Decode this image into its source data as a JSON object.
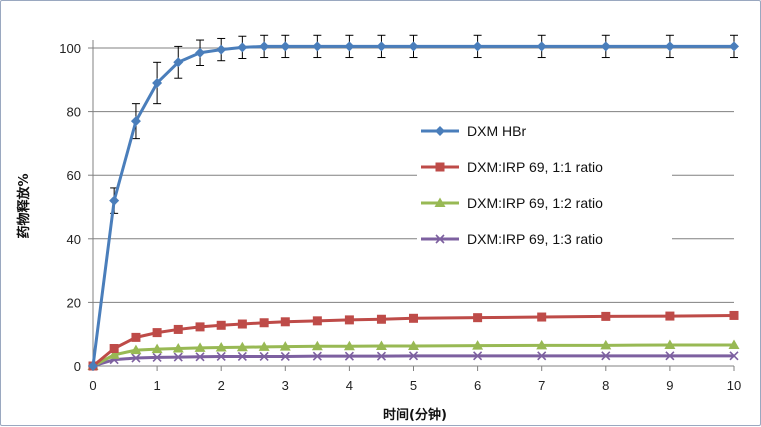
{
  "chart_data": {
    "type": "line",
    "title": "",
    "xlabel": "时间(分钟)",
    "ylabel": "药物释放%",
    "xlim": [
      0,
      10
    ],
    "ylim": [
      0,
      100
    ],
    "x_ticks": [
      0,
      1,
      2,
      3,
      4,
      5,
      6,
      7,
      8,
      9,
      10
    ],
    "y_ticks": [
      0,
      20,
      40,
      60,
      80,
      100
    ],
    "grid": "horizontal",
    "legend_position": "right",
    "series": [
      {
        "name": "DXM HBr",
        "color": "#4a7ebb",
        "marker": "diamond",
        "x": [
          0,
          0.33,
          0.67,
          1,
          1.33,
          1.67,
          2,
          2.33,
          2.67,
          3,
          3.5,
          4,
          4.5,
          5,
          6,
          7,
          8,
          9,
          10
        ],
        "y": [
          0,
          52,
          77,
          89,
          95.5,
          98.5,
          99.5,
          100.2,
          100.5,
          100.5,
          100.5,
          100.5,
          100.5,
          100.5,
          100.5,
          100.5,
          100.5,
          100.5,
          100.5
        ],
        "error": [
          0,
          4,
          5.5,
          6.5,
          5,
          4,
          3.5,
          3.5,
          3.5,
          3.5,
          3.5,
          3.5,
          3.5,
          3.5,
          3.5,
          3.5,
          3.5,
          3.5,
          3.5
        ]
      },
      {
        "name": "DXM:IRP 69, 1:1 ratio",
        "color": "#be4b48",
        "marker": "square",
        "x": [
          0,
          0.33,
          0.67,
          1,
          1.33,
          1.67,
          2,
          2.33,
          2.67,
          3,
          3.5,
          4,
          4.5,
          5,
          6,
          7,
          8,
          9,
          10
        ],
        "y": [
          0,
          5.5,
          9,
          10.5,
          11.5,
          12.3,
          12.8,
          13.2,
          13.6,
          13.9,
          14.2,
          14.5,
          14.7,
          15,
          15.2,
          15.4,
          15.6,
          15.7,
          15.9
        ]
      },
      {
        "name": "DXM:IRP 69, 1:2 ratio",
        "color": "#98b954",
        "marker": "triangle",
        "x": [
          0,
          0.33,
          0.67,
          1,
          1.33,
          1.67,
          2,
          2.33,
          2.67,
          3,
          3.5,
          4,
          4.5,
          5,
          6,
          7,
          8,
          9,
          10
        ],
        "y": [
          0,
          3.5,
          5,
          5.3,
          5.5,
          5.7,
          5.8,
          5.9,
          6,
          6.1,
          6.2,
          6.2,
          6.3,
          6.3,
          6.4,
          6.5,
          6.5,
          6.6,
          6.6
        ]
      },
      {
        "name": "DXM:IRP 69, 1:3 ratio",
        "color": "#7d60a0",
        "marker": "x",
        "x": [
          0,
          0.33,
          0.67,
          1,
          1.33,
          1.67,
          2,
          2.33,
          2.67,
          3,
          3.5,
          4,
          4.5,
          5,
          6,
          7,
          8,
          9,
          10
        ],
        "y": [
          0,
          2,
          2.5,
          2.7,
          2.8,
          2.9,
          3,
          3,
          3,
          3,
          3.1,
          3.1,
          3.1,
          3.2,
          3.2,
          3.2,
          3.2,
          3.2,
          3.2
        ]
      }
    ]
  }
}
